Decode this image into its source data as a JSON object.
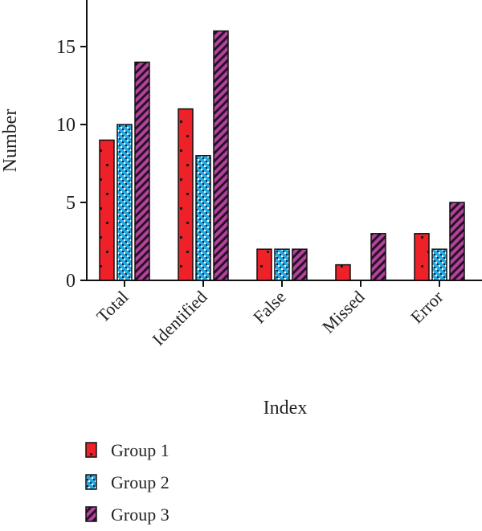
{
  "chart_data": {
    "type": "bar",
    "title": "",
    "xlabel": "Index",
    "ylabel": "Number",
    "categories": [
      "Total",
      "Identified",
      "False",
      "Missed",
      "Error"
    ],
    "yticks": [
      0,
      5,
      10,
      15
    ],
    "ylim": [
      0,
      18
    ],
    "grid": false,
    "legend_position": "bottom-left",
    "series": [
      {
        "name": "Group 1",
        "values": [
          9,
          11,
          2,
          1,
          3
        ],
        "color": "#ee2129",
        "pattern": "dots"
      },
      {
        "name": "Group 2",
        "values": [
          10,
          8,
          2,
          0,
          2
        ],
        "color": "#29a9e1",
        "pattern": "checker"
      },
      {
        "name": "Group 3",
        "values": [
          14,
          16,
          2,
          3,
          5
        ],
        "color": "#b0449b",
        "pattern": "diagonal-stripes"
      }
    ]
  }
}
